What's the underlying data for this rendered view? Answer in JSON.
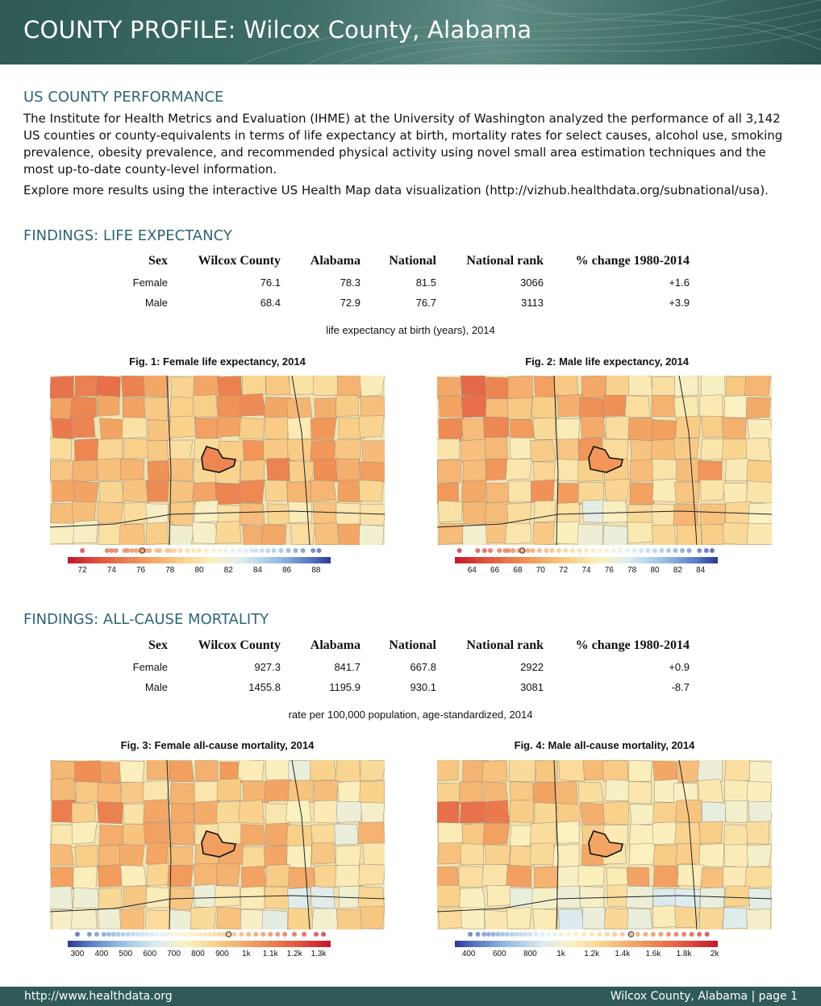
{
  "header": {
    "title": "COUNTY PROFILE: Wilcox County, Alabama"
  },
  "intro": {
    "heading": "US COUNTY PERFORMANCE",
    "paragraph": "The Institute for Health Metrics and Evaluation (IHME) at the University of Washington analyzed the performance of all 3,142 US counties or county-equivalents in terms of life expectancy at birth, mortality rates for select causes, alcohol use, smoking prevalence, obesity prevalence, and recommended physical activity using novel small area estimation techniques and the most up-to-date county-level information.",
    "explore": "Explore more results using the interactive US Health Map data visualization (http://vizhub.healthdata.org/subnational/usa)."
  },
  "life_expectancy": {
    "heading": "FINDINGS: LIFE EXPECTANCY",
    "columns": [
      "Sex",
      "Wilcox County",
      "Alabama",
      "National",
      "National rank",
      "% change 1980-2014"
    ],
    "rows": [
      [
        "Female",
        "76.1",
        "78.3",
        "81.5",
        "3066",
        "+1.6"
      ],
      [
        "Male",
        "68.4",
        "72.9",
        "76.7",
        "3113",
        "+3.9"
      ]
    ],
    "caption": "life expectancy at birth (years), 2014",
    "fig1": {
      "title": "Fig. 1: Female life expectancy, 2014",
      "min": 71,
      "max": 89,
      "county_value": 76.1,
      "reversed": false,
      "ticks": [
        72,
        74,
        76,
        78,
        80,
        82,
        84,
        86,
        88
      ],
      "tick_labels": [
        "72",
        "74",
        "76",
        "78",
        "80",
        "82",
        "84",
        "86",
        "88"
      ],
      "dots": [
        72.0,
        73.7,
        74.0,
        74.3,
        74.9,
        75.1,
        75.4,
        75.7,
        76.0,
        76.2,
        76.4,
        76.6,
        77.1,
        77.3,
        77.8,
        78.0,
        78.3,
        78.7,
        79.2,
        79.6,
        80.0,
        80.5,
        81.0,
        81.4,
        81.8,
        82.3,
        82.8,
        83.2,
        83.6,
        83.9,
        84.3,
        84.7,
        85.1,
        85.6,
        86.1,
        86.6,
        87.1,
        87.8,
        88.2
      ]
    },
    "fig2": {
      "title": "Fig. 2: Male life expectancy, 2014",
      "min": 62.5,
      "max": 85.5,
      "county_value": 68.4,
      "reversed": false,
      "ticks": [
        64,
        66,
        68,
        70,
        72,
        74,
        76,
        78,
        80,
        82,
        84
      ],
      "tick_labels": [
        "64",
        "66",
        "68",
        "70",
        "72",
        "74",
        "76",
        "78",
        "80",
        "82",
        "84"
      ],
      "dots": [
        62.9,
        64.5,
        65.1,
        65.6,
        66.4,
        66.9,
        67.2,
        67.6,
        68.1,
        68.5,
        68.9,
        69.3,
        69.9,
        70.5,
        71.0,
        71.6,
        72.2,
        72.8,
        73.4,
        74.0,
        74.6,
        75.2,
        75.8,
        76.4,
        77.0,
        77.6,
        78.2,
        78.8,
        79.4,
        80.0,
        80.6,
        81.2,
        81.8,
        82.4,
        83.0,
        83.9,
        84.5,
        85.0
      ]
    }
  },
  "mortality": {
    "heading": "FINDINGS: ALL-CAUSE MORTALITY",
    "columns": [
      "Sex",
      "Wilcox County",
      "Alabama",
      "National",
      "National rank",
      "% change 1980-2014"
    ],
    "rows": [
      [
        "Female",
        "927.3",
        "841.7",
        "667.8",
        "2922",
        "+0.9"
      ],
      [
        "Male",
        "1455.8",
        "1195.9",
        "930.1",
        "3081",
        "-8.7"
      ]
    ],
    "caption": "rate per 100,000 population, age-standardized, 2014",
    "fig3": {
      "title": "Fig. 3: Female all-cause mortality, 2014",
      "min": 260,
      "max": 1350,
      "county_value": 927.3,
      "reversed": true,
      "ticks": [
        300,
        400,
        500,
        600,
        700,
        800,
        900,
        1000,
        1100,
        1200,
        1300
      ],
      "tick_labels": [
        "300",
        "400",
        "500",
        "600",
        "700",
        "800",
        "900",
        "1k",
        "1.1k",
        "1.2k",
        "1.3k"
      ],
      "dots": [
        300,
        350,
        380,
        410,
        430,
        450,
        470,
        490,
        510,
        530,
        550,
        570,
        590,
        610,
        630,
        650,
        670,
        690,
        710,
        730,
        750,
        770,
        790,
        810,
        830,
        850,
        870,
        890,
        910,
        930,
        950,
        980,
        1010,
        1040,
        1070,
        1100,
        1130,
        1160,
        1200,
        1240,
        1290,
        1320
      ]
    },
    "fig4": {
      "title": "Fig. 4: Male all-cause mortality, 2014",
      "min": 310,
      "max": 2020,
      "county_value": 1455.8,
      "reversed": true,
      "ticks": [
        400,
        600,
        800,
        1000,
        1200,
        1400,
        1600,
        1800,
        2000
      ],
      "tick_labels": [
        "400",
        "600",
        "800",
        "1k",
        "1.2k",
        "1.4k",
        "1.6k",
        "1.8k",
        "2k"
      ],
      "dots": [
        410,
        460,
        500,
        530,
        560,
        590,
        620,
        650,
        680,
        710,
        740,
        770,
        800,
        840,
        880,
        920,
        960,
        1000,
        1050,
        1100,
        1150,
        1200,
        1250,
        1300,
        1350,
        1400,
        1450,
        1500,
        1550,
        1600,
        1650,
        1700,
        1750,
        1800,
        1850,
        1900,
        1950
      ]
    }
  },
  "footer": {
    "url": "http://www.healthdata.org",
    "page": "Wilcox County, Alabama | page 1"
  },
  "colors": {
    "header_bg": "#3a6862",
    "heading_teal": "#2e6670",
    "footer_bg": "#2f5a58",
    "scale_low": "#c2182e",
    "scale_mid": "#fbf6bf",
    "scale_high": "#2e3792"
  }
}
